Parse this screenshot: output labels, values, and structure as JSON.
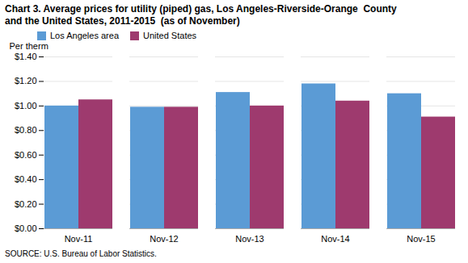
{
  "chart_data": {
    "type": "bar",
    "title": "Chart 3. Average prices for utility (piped) gas, Los Angeles-Riverside-Orange  County",
    "subtitle": "and the United States, 2011-2015  (as of November)",
    "ylabel": "Per therm",
    "caption": "SOURCE: U.S. Bureau of Labor Statistics.",
    "categories": [
      "Nov-11",
      "Nov-12",
      "Nov-13",
      "Nov-14",
      "Nov-15"
    ],
    "series": [
      {
        "name": "Los Angeles area",
        "color": "#5B9BD5",
        "values": [
          1.0,
          0.99,
          1.11,
          1.18,
          1.1
        ]
      },
      {
        "name": "United States",
        "color": "#9E3A6E",
        "values": [
          1.05,
          0.99,
          1.0,
          1.04,
          0.91
        ]
      }
    ],
    "ylim": [
      0.0,
      1.4
    ],
    "yticks": [
      {
        "value": 0.0,
        "label": "$0.00"
      },
      {
        "value": 0.2,
        "label": "$0.20"
      },
      {
        "value": 0.4,
        "label": "$0.40"
      },
      {
        "value": 0.6,
        "label": "$0.60"
      },
      {
        "value": 0.8,
        "label": "$0.80"
      },
      {
        "value": 1.0,
        "label": "$1.00"
      },
      {
        "value": 1.2,
        "label": "$1.20"
      },
      {
        "value": 1.4,
        "label": "$1.40"
      }
    ],
    "grid": true,
    "legend": "upper left"
  }
}
